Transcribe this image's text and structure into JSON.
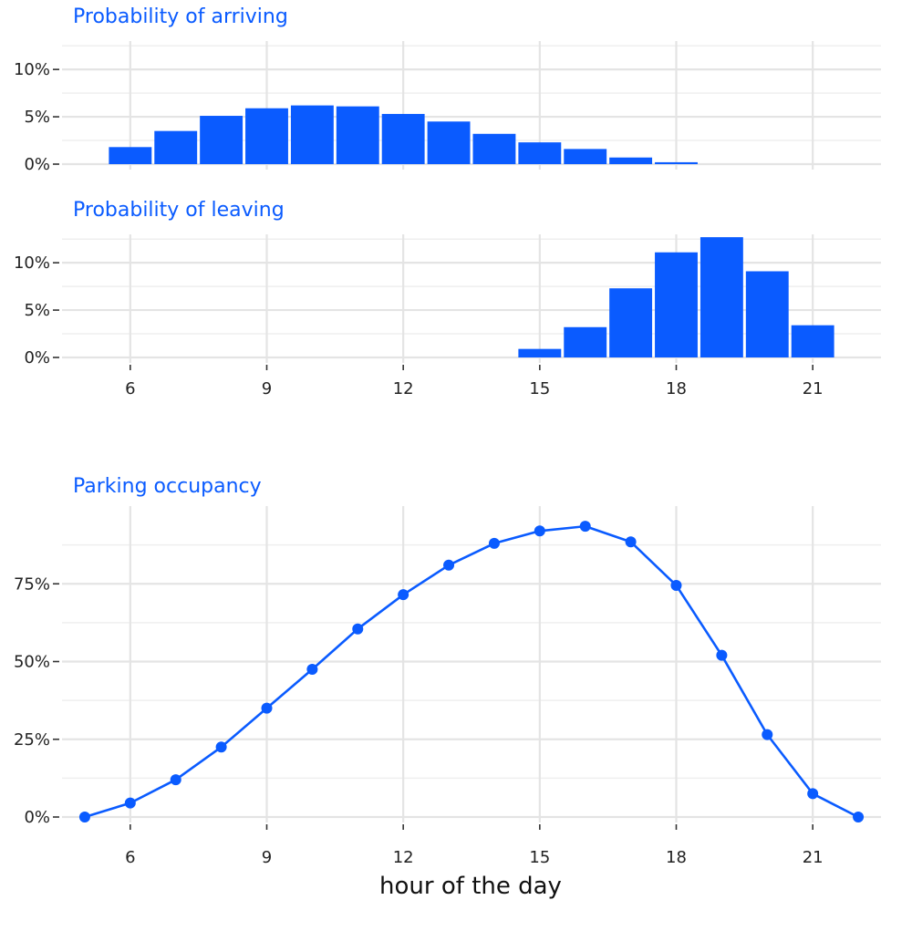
{
  "colors": {
    "accent": "#0a5bff",
    "grid_major": "#e4e4e4",
    "grid_minor": "#efefef",
    "text": "#222222"
  },
  "chart_data": [
    {
      "type": "bar",
      "title": "Probability of arriving",
      "xlabel": "",
      "ylabel": "",
      "x": [
        6,
        7,
        8,
        9,
        10,
        11,
        12,
        13,
        14,
        15,
        16,
        17,
        18
      ],
      "values": [
        1.8,
        3.5,
        5.1,
        5.9,
        6.2,
        6.1,
        5.3,
        4.5,
        3.2,
        2.3,
        1.6,
        0.7,
        0.2
      ],
      "xlim": [
        4.5,
        22.5
      ],
      "ylim": [
        0,
        13
      ],
      "yticks": [
        0,
        5,
        10
      ],
      "ytick_labels": [
        "0%",
        "5%",
        "10%"
      ],
      "xticks": [
        6,
        9,
        12,
        15,
        18,
        21
      ],
      "xtick_labels": [],
      "grid": true,
      "legend": "none"
    },
    {
      "type": "bar",
      "title": "Probability of leaving",
      "xlabel": "",
      "ylabel": "",
      "x": [
        15,
        16,
        17,
        18,
        19,
        20,
        21
      ],
      "values": [
        0.9,
        3.2,
        7.3,
        11.1,
        12.7,
        9.1,
        3.4
      ],
      "xlim": [
        4.5,
        22.5
      ],
      "ylim": [
        0,
        13
      ],
      "yticks": [
        0,
        5,
        10
      ],
      "ytick_labels": [
        "0%",
        "5%",
        "10%"
      ],
      "xticks": [
        6,
        9,
        12,
        15,
        18,
        21
      ],
      "xtick_labels": [
        "6",
        "9",
        "12",
        "15",
        "18",
        "21"
      ],
      "grid": true,
      "legend": "none"
    },
    {
      "type": "line",
      "title": "Parking occupancy",
      "xlabel": "hour of the day",
      "ylabel": "",
      "x": [
        5,
        6,
        7,
        8,
        9,
        10,
        11,
        12,
        13,
        14,
        15,
        16,
        17,
        18,
        19,
        20,
        21,
        22
      ],
      "values": [
        0,
        4.5,
        12,
        22.5,
        35,
        47.5,
        60.5,
        71.5,
        81,
        88,
        92,
        93.5,
        88.5,
        74.5,
        52,
        26.5,
        7.5,
        0
      ],
      "xlim": [
        4.5,
        22.5
      ],
      "ylim": [
        0,
        100
      ],
      "yticks": [
        0,
        25,
        50,
        75
      ],
      "ytick_labels": [
        "0%",
        "25%",
        "50%",
        "75%"
      ],
      "xticks": [
        6,
        9,
        12,
        15,
        18,
        21
      ],
      "xtick_labels": [
        "6",
        "9",
        "12",
        "15",
        "18",
        "21"
      ],
      "markers": true,
      "grid": true,
      "legend": "none"
    }
  ]
}
